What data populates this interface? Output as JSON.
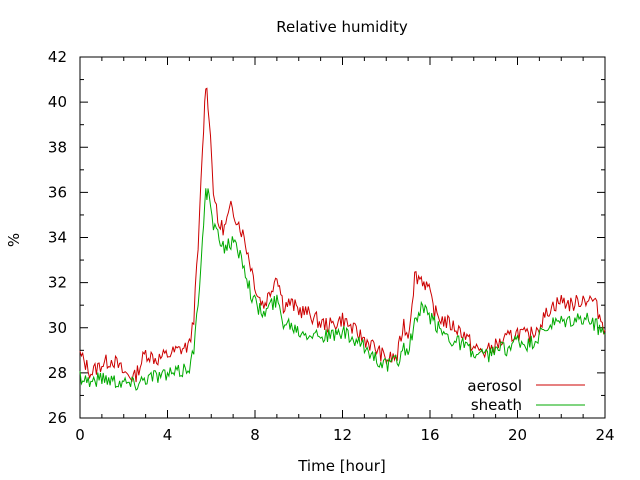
{
  "chart_data": {
    "type": "line",
    "title": "Relative humidity",
    "xlabel": "Time [hour]",
    "ylabel": "%",
    "xlim": [
      0,
      24
    ],
    "ylim": [
      26,
      42
    ],
    "xticks": [
      0,
      4,
      8,
      12,
      16,
      20,
      24
    ],
    "yticks": [
      26,
      28,
      30,
      32,
      34,
      36,
      38,
      40,
      42
    ],
    "grid": false,
    "legend_position": "bottom-right",
    "series": [
      {
        "name": "aerosol",
        "color": "#cc0000",
        "x": [
          0,
          0.5,
          1,
          1.5,
          2,
          2.5,
          3,
          3.5,
          4,
          4.5,
          5,
          5.2,
          5.4,
          5.6,
          5.75,
          5.9,
          6.1,
          6.3,
          6.6,
          6.9,
          7.2,
          7.5,
          7.8,
          8.1,
          8.4,
          8.7,
          9.0,
          9.3,
          9.6,
          10,
          10.5,
          11,
          11.5,
          12,
          12.5,
          13,
          13.5,
          14,
          14.5,
          14.8,
          15.0,
          15.3,
          15.6,
          15.9,
          16.2,
          16.5,
          17,
          17.5,
          18,
          18.5,
          19,
          19.5,
          20,
          20.5,
          21,
          21.5,
          22,
          22.5,
          23,
          23.5,
          24
        ],
        "y": [
          28.8,
          28.0,
          28.4,
          28.6,
          28.0,
          27.8,
          28.9,
          28.6,
          28.8,
          29.0,
          29.2,
          30.5,
          33.5,
          37.8,
          40.9,
          39.5,
          36.2,
          34.6,
          34.4,
          35.3,
          34.8,
          34.0,
          32.8,
          31.5,
          31.0,
          31.6,
          32.4,
          31.0,
          31.1,
          30.8,
          30.6,
          30.2,
          30.1,
          30.4,
          29.9,
          29.5,
          29.1,
          28.6,
          28.7,
          30.2,
          29.6,
          32.3,
          32.2,
          31.8,
          30.7,
          30.4,
          30.1,
          29.8,
          29.1,
          28.9,
          29.2,
          29.5,
          29.8,
          29.6,
          30.1,
          30.9,
          31.2,
          31.0,
          31.3,
          31.2,
          29.9
        ]
      },
      {
        "name": "sheath",
        "color": "#00aa00",
        "x": [
          0,
          0.5,
          1,
          1.5,
          2,
          2.5,
          3,
          3.5,
          4,
          4.5,
          5,
          5.2,
          5.4,
          5.6,
          5.75,
          5.9,
          6.1,
          6.3,
          6.6,
          6.9,
          7.2,
          7.5,
          7.8,
          8.1,
          8.4,
          8.7,
          9.0,
          9.3,
          9.6,
          10,
          10.5,
          11,
          11.5,
          12,
          12.5,
          13,
          13.5,
          14,
          14.5,
          14.8,
          15.0,
          15.3,
          15.6,
          15.9,
          16.2,
          16.5,
          17,
          17.5,
          18,
          18.5,
          19,
          19.5,
          20,
          20.5,
          21,
          21.5,
          22,
          22.5,
          23,
          23.5,
          24
        ],
        "y": [
          27.9,
          27.6,
          27.8,
          27.7,
          27.6,
          27.5,
          27.8,
          27.9,
          27.9,
          28.0,
          28.3,
          29.0,
          31.0,
          34.2,
          36.0,
          35.8,
          34.5,
          34.0,
          33.6,
          33.8,
          33.5,
          32.8,
          31.6,
          30.9,
          30.6,
          31.0,
          31.2,
          30.3,
          30.2,
          29.9,
          29.8,
          29.7,
          29.6,
          29.8,
          29.4,
          29.1,
          28.7,
          28.3,
          28.5,
          29.1,
          28.9,
          30.2,
          30.8,
          30.6,
          30.2,
          29.9,
          29.5,
          29.3,
          28.8,
          28.7,
          29.0,
          29.1,
          29.4,
          29.2,
          29.6,
          30.1,
          30.2,
          30.3,
          30.4,
          30.2,
          29.7
        ]
      }
    ]
  }
}
